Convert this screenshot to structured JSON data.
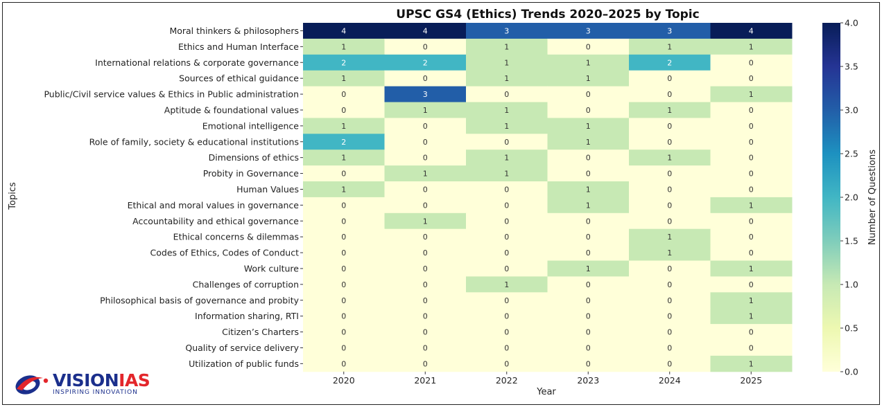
{
  "chart_data": {
    "type": "heatmap",
    "title": "UPSC GS4 (Ethics) Trends 2020–2025 by Topic",
    "xlabel": "Year",
    "ylabel": "Topics",
    "colorbar_label": "Number of Questions",
    "colorbar_range": [
      0.0,
      4.0
    ],
    "colorbar_ticks": [
      "0.0",
      "0.5",
      "1.0",
      "1.5",
      "2.0",
      "2.5",
      "3.0",
      "3.5",
      "4.0"
    ],
    "colormap": "YlGnBu",
    "annotated": true,
    "columns": [
      "2020",
      "2021",
      "2022",
      "2023",
      "2024",
      "2025"
    ],
    "rows": [
      "Moral thinkers & philosophers",
      "Ethics and Human Interface",
      "International relations & corporate governance",
      "Sources of ethical guidance",
      "Public/Civil service values & Ethics in Public administration",
      "Aptitude & foundational values",
      "Emotional intelligence",
      "Role of family, society & educational institutions",
      "Dimensions of ethics",
      "Probity in Governance",
      "Human Values",
      "Ethical and moral values in governance",
      "Accountability and ethical governance",
      "Ethical concerns & dilemmas",
      "Codes of Ethics, Codes of Conduct",
      "Work culture",
      "Challenges of corruption",
      "Philosophical basis of governance and probity",
      "Information sharing, RTI",
      "Citizen’s Charters",
      "Quality of service delivery",
      "Utilization of public funds"
    ],
    "values": [
      [
        4,
        4,
        3,
        3,
        3,
        4
      ],
      [
        1,
        0,
        1,
        0,
        1,
        1
      ],
      [
        2,
        2,
        1,
        1,
        2,
        0
      ],
      [
        1,
        0,
        1,
        1,
        0,
        0
      ],
      [
        0,
        3,
        0,
        0,
        0,
        1
      ],
      [
        0,
        1,
        1,
        0,
        1,
        0
      ],
      [
        1,
        0,
        1,
        1,
        0,
        0
      ],
      [
        2,
        0,
        0,
        1,
        0,
        0
      ],
      [
        1,
        0,
        1,
        0,
        1,
        0
      ],
      [
        0,
        1,
        1,
        0,
        0,
        0
      ],
      [
        1,
        0,
        0,
        1,
        0,
        0
      ],
      [
        0,
        0,
        0,
        1,
        0,
        1
      ],
      [
        0,
        1,
        0,
        0,
        0,
        0
      ],
      [
        0,
        0,
        0,
        0,
        1,
        0
      ],
      [
        0,
        0,
        0,
        0,
        1,
        0
      ],
      [
        0,
        0,
        0,
        1,
        0,
        1
      ],
      [
        0,
        0,
        1,
        0,
        0,
        0
      ],
      [
        0,
        0,
        0,
        0,
        0,
        1
      ],
      [
        0,
        0,
        0,
        0,
        0,
        1
      ],
      [
        0,
        0,
        0,
        0,
        0,
        0
      ],
      [
        0,
        0,
        0,
        0,
        0,
        0
      ],
      [
        0,
        0,
        0,
        0,
        0,
        1
      ]
    ],
    "colors": {
      "0": "#ffffd9",
      "1": "#c7e9b4",
      "2": "#41b6c4",
      "3": "#225ea8",
      "4": "#081d58"
    }
  },
  "branding": {
    "logo_name": "VISIONIAS",
    "logo_part_1": "VISION",
    "logo_part_2": "IAS",
    "logo_tagline": "INSPIRING INNOVATION",
    "logo_colors": {
      "primary": "#1b2f8c",
      "accent": "#e3262b"
    }
  }
}
